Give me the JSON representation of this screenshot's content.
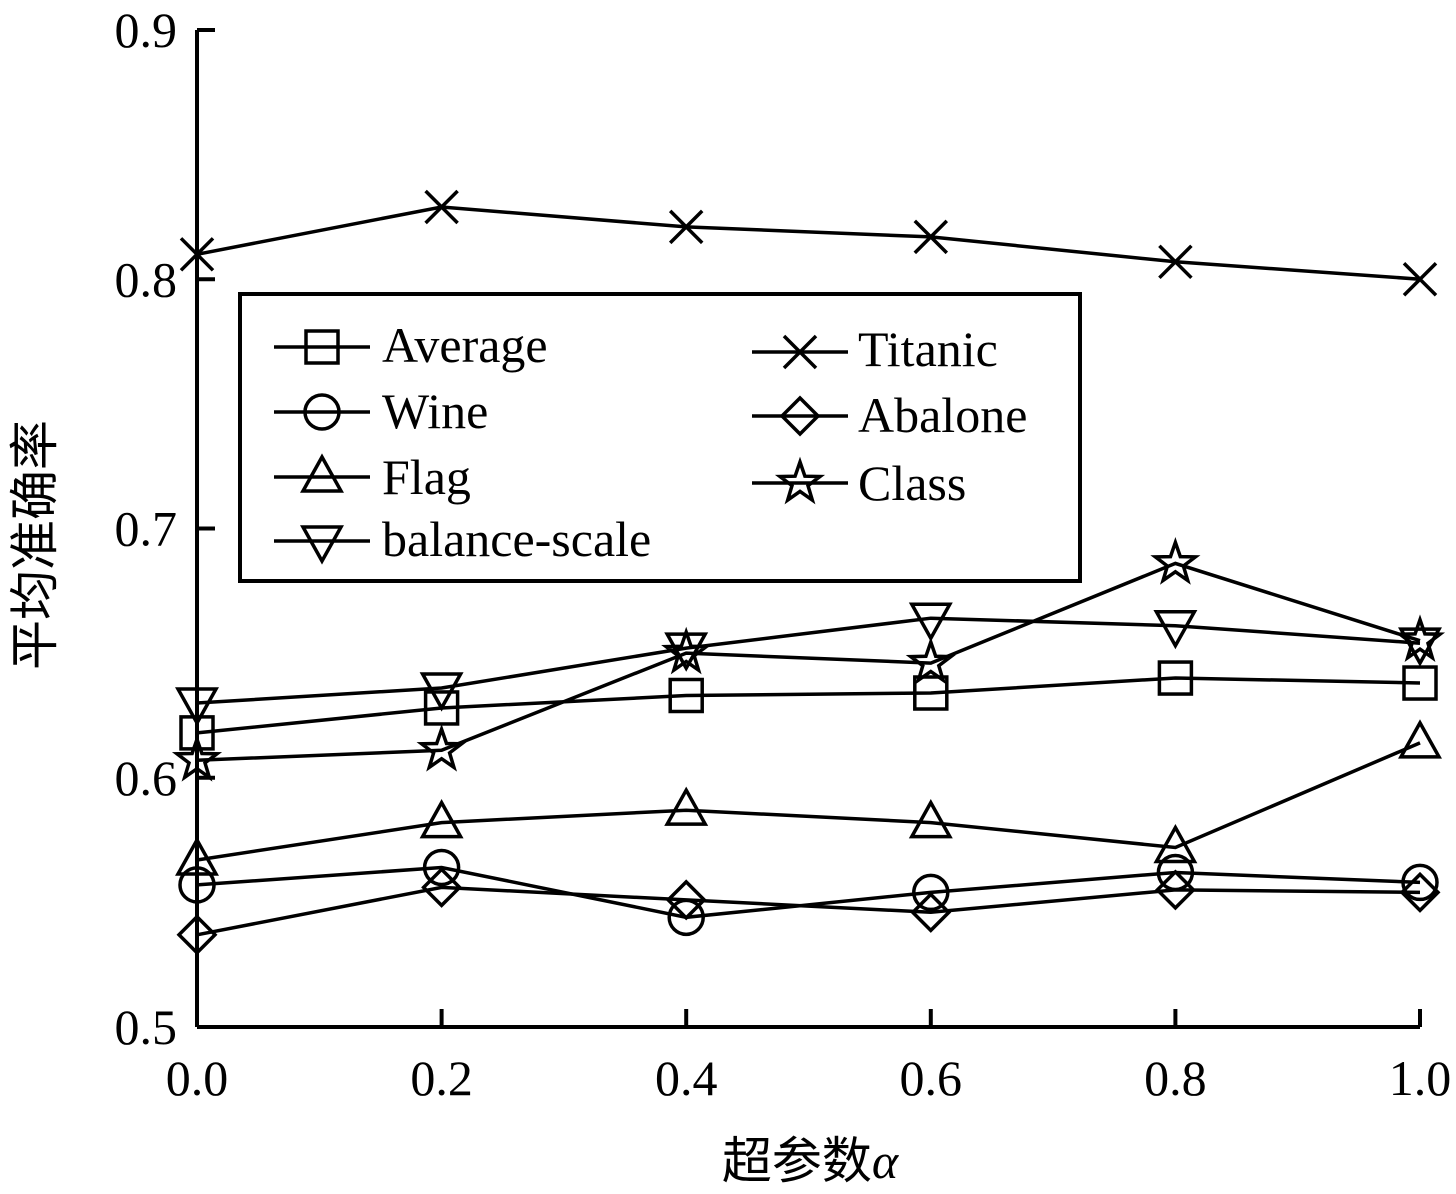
{
  "chart_data": {
    "type": "line",
    "xlabel": "超参数",
    "xlabel_symbol": "α",
    "ylabel": "平均准确率",
    "xlim": [
      0.0,
      1.0
    ],
    "ylim": [
      0.5,
      0.9
    ],
    "xticks": [
      "0.0",
      "0.2",
      "0.4",
      "0.6",
      "0.8",
      "1.0"
    ],
    "yticks": [
      "0.5",
      "0.6",
      "0.7",
      "0.8",
      "0.9"
    ],
    "grid": false,
    "legend_position": "upper-left",
    "x": [
      0.0,
      0.2,
      0.4,
      0.6,
      0.8,
      1.0
    ],
    "series": [
      {
        "name": "Average",
        "marker": "square",
        "values": [
          0.618,
          0.628,
          0.633,
          0.634,
          0.64,
          0.638
        ]
      },
      {
        "name": "Titanic",
        "marker": "x",
        "values": [
          0.81,
          0.829,
          0.821,
          0.817,
          0.807,
          0.8
        ]
      },
      {
        "name": "Wine",
        "marker": "circle",
        "values": [
          0.557,
          0.564,
          0.544,
          0.554,
          0.562,
          0.558
        ]
      },
      {
        "name": "Abalone",
        "marker": "diamond",
        "values": [
          0.537,
          0.556,
          0.551,
          0.546,
          0.555,
          0.554
        ]
      },
      {
        "name": "Flag",
        "marker": "triangle-up",
        "values": [
          0.567,
          0.582,
          0.587,
          0.582,
          0.572,
          0.614
        ]
      },
      {
        "name": "Class",
        "marker": "star",
        "values": [
          0.607,
          0.611,
          0.65,
          0.646,
          0.686,
          0.655
        ]
      },
      {
        "name": "balance-scale",
        "marker": "triangle-down",
        "values": [
          0.63,
          0.636,
          0.652,
          0.664,
          0.661,
          0.654
        ]
      }
    ]
  }
}
